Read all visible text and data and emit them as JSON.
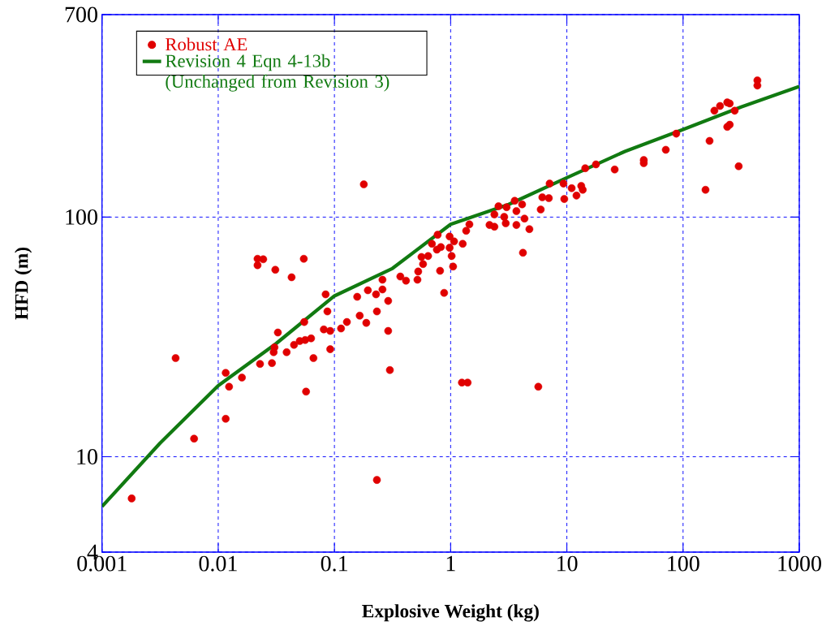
{
  "chart_data": {
    "type": "scatter",
    "xlabel": "Explosive Weight (kg)",
    "ylabel": "HFD (m)",
    "log": "xy",
    "grid": true,
    "legend": "top left",
    "xlim": [
      0.001,
      1000
    ],
    "ylim": [
      4,
      700
    ],
    "xticks": [
      0.001,
      0.01,
      0.1,
      1,
      10,
      100,
      1000
    ],
    "yticks": [
      4,
      10,
      100,
      700
    ],
    "series": [
      {
        "name": "Robust AE",
        "marker": "circle",
        "color": "#e00000",
        "x": [
          0.0018,
          0.0043,
          0.0062,
          0.0116,
          0.0124,
          0.0116,
          0.016,
          0.0218,
          0.0244,
          0.0218,
          0.031,
          0.0428,
          0.0545,
          0.084,
          0.087,
          0.055,
          0.0326,
          0.081,
          0.092,
          0.114,
          0.0305,
          0.03,
          0.0388,
          0.0449,
          0.0503,
          0.056,
          0.063,
          0.092,
          0.066,
          0.0229,
          0.029,
          0.057,
          0.179,
          0.128,
          0.157,
          0.165,
          0.188,
          0.194,
          0.228,
          0.259,
          0.259,
          0.29,
          0.232,
          0.29,
          0.3,
          0.369,
          0.413,
          0.518,
          0.526,
          0.561,
          0.64,
          0.579,
          0.69,
          0.773,
          0.761,
          0.824,
          0.811,
          0.879,
          0.98,
          1.07,
          0.98,
          1.02,
          1.05,
          1.27,
          1.36,
          1.45,
          1.25,
          1.4,
          2.38,
          2.58,
          2.16,
          2.38,
          2.89,
          2.98,
          3.03,
          3.56,
          3.68,
          3.68,
          4.12,
          4.32,
          4.76,
          4.19,
          5.96,
          6.15,
          7.11,
          7.0,
          9.35,
          9.5,
          5.68,
          11.0,
          12.1,
          13.3,
          13.7,
          14.4,
          17.8,
          25.8,
          45.9,
          45.9,
          71,
          87.4,
          156,
          169,
          186,
          208,
          240,
          252,
          278,
          240,
          252,
          301,
          436,
          436,
          0.232
        ],
        "values": [
          6.7,
          25.8,
          11.9,
          22.4,
          19.6,
          14.4,
          21.4,
          67,
          66.7,
          63,
          60.3,
          56.1,
          67,
          47.6,
          40.4,
          36.5,
          33,
          34,
          33.5,
          34.3,
          28.6,
          27.3,
          27.3,
          29.3,
          30.4,
          30.7,
          31.2,
          28.1,
          25.8,
          24.4,
          24.6,
          18.7,
          137,
          36.5,
          46.5,
          38.8,
          36.2,
          49.5,
          47.6,
          49.9,
          54.8,
          44.7,
          40.4,
          33.5,
          23,
          56.5,
          54.3,
          54.8,
          59.3,
          68.2,
          68.8,
          63.7,
          77.4,
          84.4,
          73.2,
          75,
          59.7,
          48.3,
          83,
          79.2,
          74.5,
          68.8,
          62.2,
          77.4,
          87.7,
          93.3,
          20.4,
          20.4,
          102.6,
          111,
          92.7,
          91.2,
          100.2,
          94.2,
          110,
          117,
          106,
          92.7,
          113,
          98.6,
          89.1,
          71,
          107.6,
          121,
          138,
          120,
          138,
          119,
          19.6,
          132,
          123,
          135,
          130,
          160,
          166,
          158,
          173,
          168,
          191,
          223,
          130,
          208,
          278,
          291,
          301,
          298,
          278,
          238,
          243,
          163,
          372,
          354,
          8.0
        ]
      },
      {
        "name": "Revision 4 Eqn 4-13b (Unchanged from Revision 3)",
        "type": "line",
        "marker": "none",
        "line_style": "solid",
        "color": "#117a11",
        "x": [
          0.001,
          0.00316,
          0.01,
          0.0316,
          0.1,
          0.316,
          1,
          3.16,
          10,
          31.6,
          100,
          316,
          1000
        ],
        "values": [
          6.2,
          11.4,
          19.8,
          29.7,
          46.9,
          61.1,
          93.3,
          113,
          146,
          188,
          232,
          288,
          351
        ]
      }
    ]
  }
}
